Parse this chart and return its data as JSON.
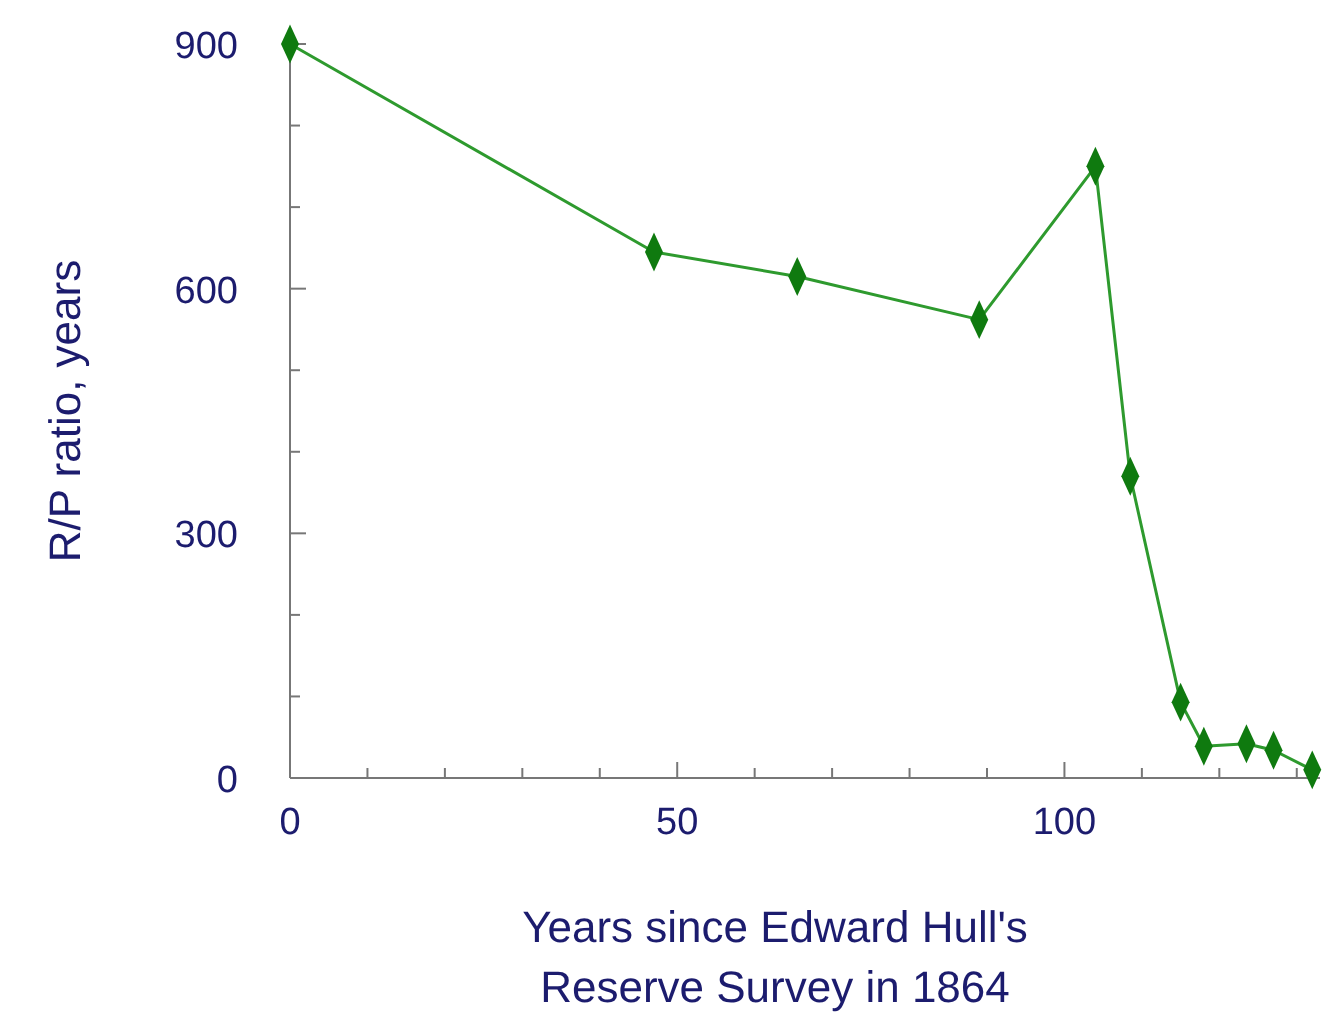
{
  "chart_data": {
    "type": "line",
    "xlabel": "Years since Edward Hull's\nReserve Survey in 1864",
    "ylabel": "R/P ratio, years",
    "series": [
      {
        "color": "#2e9a2e",
        "x": [
          0,
          47,
          65.5,
          89,
          104,
          108.5,
          115,
          118,
          123.5,
          127,
          132
        ],
        "values": [
          900,
          645,
          615,
          562,
          750,
          370,
          93,
          39,
          42,
          34,
          10
        ]
      }
    ],
    "xlim": [
      0,
      133
    ],
    "ylim": [
      0,
      900
    ],
    "xticks": [
      0,
      {
        "value": 10,
        "label": null
      },
      {
        "value": 20,
        "label": null
      },
      {
        "value": 30,
        "label": null
      },
      {
        "value": 40,
        "label": null
      },
      50,
      {
        "value": 60,
        "label": null
      },
      {
        "value": 70,
        "label": null
      },
      {
        "value": 80,
        "label": null
      },
      {
        "value": 90,
        "label": null
      },
      100,
      {
        "value": 110,
        "label": null
      },
      {
        "value": 120,
        "label": null
      },
      {
        "value": 130,
        "label": null
      }
    ],
    "yticks": [
      0,
      {
        "value": 100,
        "label": null
      },
      {
        "value": 200,
        "label": null
      },
      300,
      {
        "value": 400,
        "label": null
      },
      {
        "value": 500,
        "label": null
      },
      600,
      {
        "value": 700,
        "label": null
      },
      {
        "value": 800,
        "label": null
      },
      900
    ],
    "marker": "diamond",
    "line_style": "solid"
  }
}
